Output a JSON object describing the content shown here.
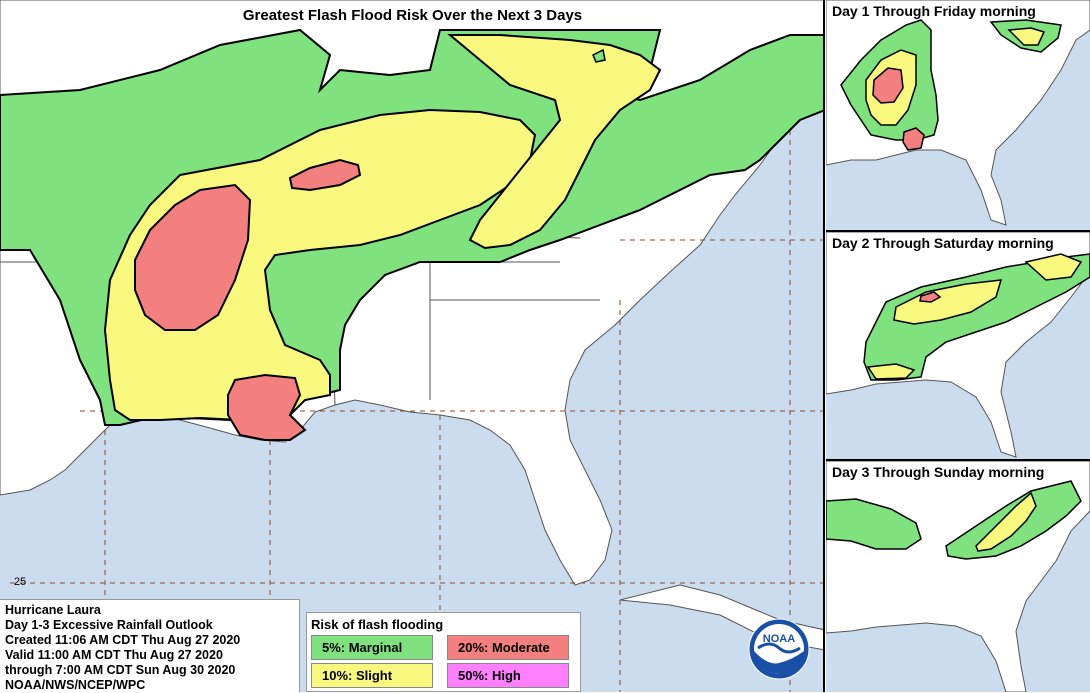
{
  "main_map": {
    "title": "Greatest Flash Flood Risk Over the Next 3 Days",
    "latitude_label": "25"
  },
  "info": {
    "lines": [
      "Hurricane Laura",
      "Day 1-3 Excessive Rainfall Outlook",
      "Created 11:06 AM CDT Thu Aug 27 2020",
      "Valid 11:00 AM CDT Thu Aug 27 2020",
      "through 7:00 AM CDT Sun Aug 30 2020",
      "NOAA/NWS/NCEP/WPC"
    ]
  },
  "legend": {
    "title": "Risk of flash flooding",
    "items": [
      {
        "label": "5%: Marginal",
        "color": "#7fe27f"
      },
      {
        "label": "20%: Moderate",
        "color": "#f47f7f"
      },
      {
        "label": "10%: Slight",
        "color": "#f8f87f"
      },
      {
        "label": "50%: High",
        "color": "#ff80ff"
      }
    ]
  },
  "panels": [
    {
      "title": "Day 1 Through Friday morning"
    },
    {
      "title": "Day 2 Through Saturday morning"
    },
    {
      "title": "Day 3 Through Sunday morning"
    }
  ],
  "logo": {
    "text": "NOAA"
  },
  "colors": {
    "ocean": "#cbdcef",
    "land": "#ffffff",
    "marginal": "#7fe27f",
    "slight": "#f8f87f",
    "moderate": "#f47f7f",
    "high": "#ff80ff",
    "outline": "#000000"
  }
}
